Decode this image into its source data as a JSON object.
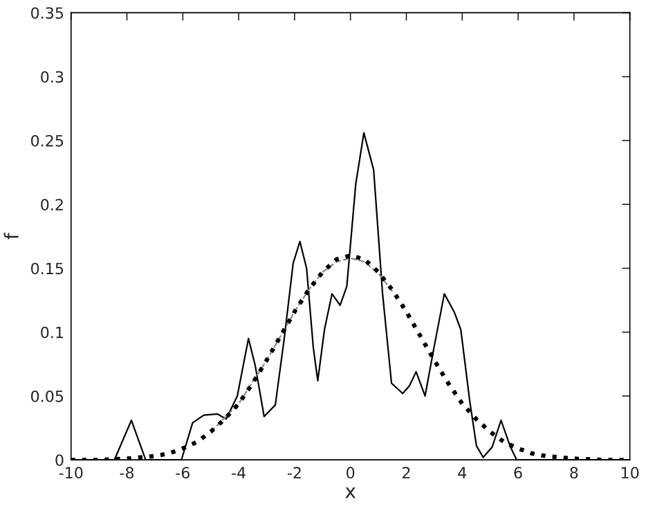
{
  "chart_data": {
    "type": "line",
    "xlabel": "x",
    "ylabel": "f",
    "xlim": [
      -10,
      10
    ],
    "ylim": [
      0,
      0.35
    ],
    "xticks": [
      -10,
      -8,
      -6,
      -4,
      -2,
      0,
      2,
      4,
      6,
      8,
      10
    ],
    "yticks": [
      0,
      {
        "value": 0.05,
        "label": "0.05"
      },
      {
        "value": 0.1,
        "label": "0.1"
      },
      {
        "value": 0.15,
        "label": "0.15"
      },
      {
        "value": 0.2,
        "label": "0.2"
      },
      {
        "value": 0.25,
        "label": "0.25"
      },
      {
        "value": 0.3,
        "label": "0.3"
      },
      {
        "value": 0.35,
        "label": "0.35"
      }
    ],
    "grid": false,
    "legend": false,
    "series": [
      {
        "color": "#000000",
        "line_style": "solid",
        "x": [
          -10,
          -8.45,
          -7.84,
          -7.33,
          -6.05,
          -5.65,
          -5.25,
          -4.77,
          -4.45,
          -4.05,
          -3.65,
          -3.41,
          -3.09,
          -2.69,
          -2.37,
          -2.05,
          -1.81,
          -1.57,
          -1.33,
          -1.17,
          -0.93,
          -0.66,
          -0.37,
          -0.13,
          0.19,
          0.48,
          0.83,
          1.15,
          1.47,
          1.87,
          2.11,
          2.35,
          2.67,
          2.99,
          3.36,
          3.71,
          3.95,
          4.27,
          4.51,
          4.75,
          5.07,
          5.39,
          5.71,
          5.95,
          10
        ],
        "values": [
          0,
          0,
          0.031,
          0,
          0,
          0.029,
          0.035,
          0.036,
          0.032,
          0.05,
          0.095,
          0.074,
          0.034,
          0.043,
          0.095,
          0.154,
          0.171,
          0.15,
          0.088,
          0.062,
          0.102,
          0.13,
          0.121,
          0.136,
          0.216,
          0.256,
          0.227,
          0.13,
          0.06,
          0.052,
          0.058,
          0.069,
          0.05,
          0.088,
          0.13,
          0.116,
          0.102,
          0.046,
          0.011,
          0.002,
          0.01,
          0.031,
          0.011,
          0,
          0
        ]
      },
      {
        "color": "#888888",
        "line_style": "dashed",
        "x": [
          -5,
          -4,
          -3,
          -2,
          -1.5,
          -1,
          -0.5,
          0,
          0.5,
          1,
          1.5
        ],
        "values": [
          0.022,
          0.044,
          0.078,
          0.116,
          0.133,
          0.147,
          0.155,
          0.158,
          0.155,
          0.146,
          0.132
        ]
      },
      {
        "color": "#000000",
        "line_style": "dotted",
        "x": [
          -10,
          -9,
          -8,
          -7,
          -6.5,
          -6,
          -5.5,
          -5,
          -4.5,
          -4,
          -3.5,
          -3,
          -2.5,
          -2,
          -1.5,
          -1,
          -0.5,
          0,
          0.5,
          1,
          1.5,
          2,
          2.5,
          3,
          3.5,
          4,
          4.5,
          5,
          5.5,
          6,
          6.5,
          7,
          8,
          9,
          10
        ],
        "values": [
          0,
          0,
          0.001,
          0.003,
          0.005,
          0.009,
          0.014,
          0.022,
          0.032,
          0.044,
          0.06,
          0.078,
          0.097,
          0.116,
          0.133,
          0.147,
          0.157,
          0.16,
          0.157,
          0.147,
          0.133,
          0.116,
          0.097,
          0.078,
          0.06,
          0.044,
          0.032,
          0.022,
          0.014,
          0.009,
          0.005,
          0.003,
          0.001,
          0,
          0
        ]
      }
    ]
  }
}
